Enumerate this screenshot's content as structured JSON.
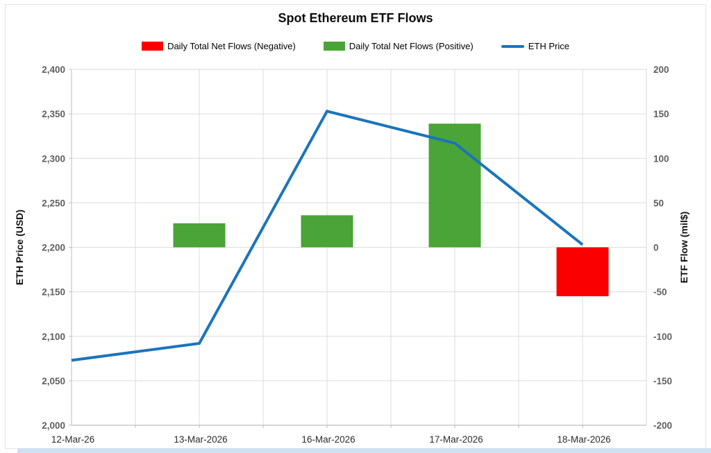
{
  "chart_data": {
    "type": "combo",
    "title": "Spot Ethereum ETF Flows",
    "categories": [
      "12-Mar-26",
      "13-Mar-2026",
      "16-Mar-2026",
      "17-Mar-2026",
      "18-Mar-2026"
    ],
    "series": [
      {
        "name": "Daily Total Net Flows (Negative)",
        "type": "bar",
        "axis": "right",
        "color": "#fb0000",
        "values": [
          null,
          null,
          null,
          null,
          -55
        ]
      },
      {
        "name": "Daily Total Net Flows (Positive)",
        "type": "bar",
        "axis": "right",
        "color": "#4aa437",
        "values": [
          null,
          27,
          36,
          139,
          null
        ]
      },
      {
        "name": "ETH Price",
        "type": "line",
        "axis": "left",
        "color": "#1b74bc",
        "values": [
          2073,
          2092,
          2353,
          2317,
          2203
        ]
      }
    ],
    "left_axis": {
      "label": "ETH Price (USD)",
      "min": 2000,
      "max": 2400,
      "ticks": [
        "2,400",
        "2,350",
        "2,300",
        "2,250",
        "2,200",
        "2,150",
        "2,100",
        "2,050",
        "2,000"
      ]
    },
    "right_axis": {
      "label": "ETF Flow (mil$)",
      "min": -200,
      "max": 200,
      "ticks": [
        "200",
        "150",
        "100",
        "50",
        "0",
        "-50",
        "-100",
        "-150",
        "-200"
      ]
    },
    "grid": true,
    "legend_position": "top"
  },
  "legend": {
    "items": [
      {
        "label": "Daily Total Net Flows (Negative)",
        "swatch": "rect",
        "color": "#fb0000"
      },
      {
        "label": "Daily Total Net Flows (Positive)",
        "swatch": "rect",
        "color": "#4aa437"
      },
      {
        "label": "ETH Price",
        "swatch": "line",
        "color": "#1b74bc"
      }
    ]
  },
  "colors": {
    "grid": "#dcdcdc",
    "axis": "#bdbdbd",
    "plot_border": "#d9d9d9",
    "tick_label": "#5f5f5f",
    "date_label": "#2b2b2b",
    "axis_title": "#111111",
    "bottom_strip": "#cfe0f2"
  }
}
